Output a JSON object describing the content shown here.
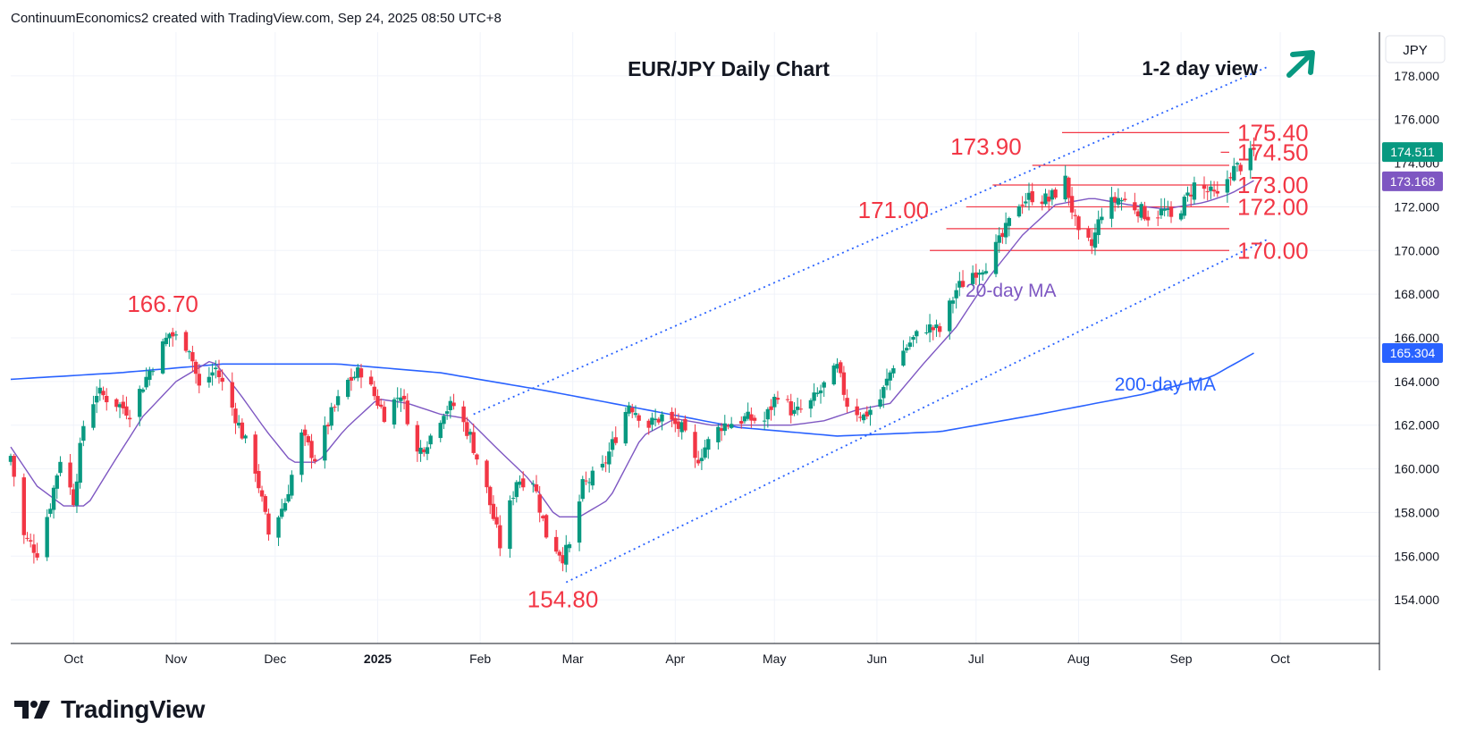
{
  "header": {
    "attribution": "ContinuumEconomics2 created with TradingView.com, Sep 24, 2025 08:50 UTC+8"
  },
  "footer": {
    "brand": "TradingView"
  },
  "colors": {
    "up": "#089981",
    "down": "#f23645",
    "level": "#f23645",
    "trend": "#2962ff",
    "ma20": "#7e57c2",
    "ma200": "#2962ff",
    "arrow": "#089981",
    "text": "#131722",
    "grid": "#f0f3fa",
    "price_badge": "#089981",
    "ma20_badge": "#7e57c2",
    "ma200_badge": "#2962ff"
  },
  "chart_data": {
    "type": "candlestick",
    "title": "EUR/JPY Daily Chart",
    "view_label": "1-2 day view",
    "view_direction": "up",
    "currency": "JPY",
    "y_axis": {
      "range": [
        152.0,
        180.0
      ],
      "ticks": [
        "154.000",
        "156.000",
        "158.000",
        "160.000",
        "162.000",
        "164.000",
        "166.000",
        "168.000",
        "170.000",
        "172.000",
        "174.000",
        "176.000",
        "178.000"
      ]
    },
    "x_axis": {
      "start": "2024-09-12",
      "end": "2025-10-31",
      "ticks": [
        {
          "label": "Oct",
          "date": "2024-10-01",
          "bold": false
        },
        {
          "label": "Nov",
          "date": "2024-11-01",
          "bold": false
        },
        {
          "label": "Dec",
          "date": "2024-12-01",
          "bold": false
        },
        {
          "label": "2025",
          "date": "2025-01-01",
          "bold": true
        },
        {
          "label": "Feb",
          "date": "2025-02-01",
          "bold": false
        },
        {
          "label": "Mar",
          "date": "2025-03-01",
          "bold": false
        },
        {
          "label": "Apr",
          "date": "2025-04-01",
          "bold": false
        },
        {
          "label": "May",
          "date": "2025-05-01",
          "bold": false
        },
        {
          "label": "Jun",
          "date": "2025-06-01",
          "bold": false
        },
        {
          "label": "Jul",
          "date": "2025-07-01",
          "bold": false
        },
        {
          "label": "Aug",
          "date": "2025-08-01",
          "bold": false
        },
        {
          "label": "Sep",
          "date": "2025-09-01",
          "bold": false
        },
        {
          "label": "Oct",
          "date": "2025-10-01",
          "bold": false
        }
      ]
    },
    "price_anchors": [
      [
        "2024-09-12",
        160.6
      ],
      [
        "2024-09-16",
        156.9
      ],
      [
        "2024-09-20",
        156.2
      ],
      [
        "2024-09-24",
        158.4
      ],
      [
        "2024-09-27",
        160.5
      ],
      [
        "2024-10-01",
        158.6
      ],
      [
        "2024-10-04",
        162.0
      ],
      [
        "2024-10-08",
        163.5
      ],
      [
        "2024-10-14",
        163.0
      ],
      [
        "2024-10-18",
        162.6
      ],
      [
        "2024-10-24",
        164.5
      ],
      [
        "2024-10-30",
        166.2
      ],
      [
        "2024-11-05",
        165.6
      ],
      [
        "2024-11-08",
        163.7
      ],
      [
        "2024-11-13",
        164.6
      ],
      [
        "2024-11-18",
        162.8
      ],
      [
        "2024-11-25",
        160.0
      ],
      [
        "2024-11-29",
        157.0
      ],
      [
        "2024-12-04",
        158.5
      ],
      [
        "2024-12-09",
        161.5
      ],
      [
        "2024-12-13",
        160.5
      ],
      [
        "2024-12-18",
        162.5
      ],
      [
        "2024-12-23",
        164.0
      ],
      [
        "2024-12-27",
        164.5
      ],
      [
        "2025-01-03",
        162.5
      ],
      [
        "2025-01-08",
        163.5
      ],
      [
        "2025-01-13",
        160.7
      ],
      [
        "2025-01-17",
        161.5
      ],
      [
        "2025-01-21",
        162.7
      ],
      [
        "2025-01-24",
        162.9
      ],
      [
        "2025-01-29",
        161.5
      ],
      [
        "2025-02-03",
        159.0
      ],
      [
        "2025-02-07",
        156.5
      ],
      [
        "2025-02-12",
        159.5
      ],
      [
        "2025-02-17",
        159.5
      ],
      [
        "2025-02-21",
        157.0
      ],
      [
        "2025-02-26",
        156.0
      ],
      [
        "2025-02-28",
        156.4
      ],
      [
        "2025-03-04",
        159.2
      ],
      [
        "2025-03-10",
        160.0
      ],
      [
        "2025-03-14",
        161.5
      ],
      [
        "2025-03-18",
        163.0
      ],
      [
        "2025-03-24",
        162.0
      ],
      [
        "2025-03-28",
        162.4
      ],
      [
        "2025-04-03",
        161.8
      ],
      [
        "2025-04-07",
        160.3
      ],
      [
        "2025-04-10",
        161.0
      ],
      [
        "2025-04-15",
        162.0
      ],
      [
        "2025-04-22",
        162.3
      ],
      [
        "2025-04-28",
        162.2
      ],
      [
        "2025-05-02",
        163.5
      ],
      [
        "2025-05-07",
        162.5
      ],
      [
        "2025-05-12",
        163.0
      ],
      [
        "2025-05-16",
        163.8
      ],
      [
        "2025-05-20",
        164.6
      ],
      [
        "2025-05-23",
        163.0
      ],
      [
        "2025-05-28",
        162.4
      ],
      [
        "2025-06-02",
        163.2
      ],
      [
        "2025-06-06",
        164.8
      ],
      [
        "2025-06-11",
        165.8
      ],
      [
        "2025-06-16",
        166.5
      ],
      [
        "2025-06-20",
        166.3
      ],
      [
        "2025-06-25",
        168.2
      ],
      [
        "2025-06-30",
        169.0
      ],
      [
        "2025-07-04",
        169.4
      ],
      [
        "2025-07-09",
        170.6
      ],
      [
        "2025-07-14",
        172.2
      ],
      [
        "2025-07-18",
        172.5
      ],
      [
        "2025-07-23",
        172.3
      ],
      [
        "2025-07-28",
        173.2
      ],
      [
        "2025-08-01",
        170.6
      ],
      [
        "2025-08-05",
        170.2
      ],
      [
        "2025-08-08",
        171.8
      ],
      [
        "2025-08-13",
        172.4
      ],
      [
        "2025-08-18",
        172.0
      ],
      [
        "2025-08-22",
        171.6
      ],
      [
        "2025-08-27",
        171.8
      ],
      [
        "2025-08-29",
        171.4
      ],
      [
        "2025-09-02",
        172.2
      ],
      [
        "2025-09-05",
        173.0
      ],
      [
        "2025-09-09",
        172.7
      ],
      [
        "2025-09-12",
        172.4
      ],
      [
        "2025-09-16",
        173.6
      ],
      [
        "2025-09-19",
        173.9
      ],
      [
        "2025-09-23",
        174.5
      ]
    ],
    "ma20_anchors": [
      [
        "2024-09-12",
        161.0
      ],
      [
        "2024-09-20",
        159.2
      ],
      [
        "2024-09-28",
        158.3
      ],
      [
        "2024-10-05",
        158.3
      ],
      [
        "2024-10-14",
        160.5
      ],
      [
        "2024-10-22",
        162.4
      ],
      [
        "2024-11-01",
        164.0
      ],
      [
        "2024-11-12",
        165.0
      ],
      [
        "2024-11-20",
        163.5
      ],
      [
        "2024-11-28",
        161.8
      ],
      [
        "2024-12-06",
        160.3
      ],
      [
        "2024-12-14",
        160.3
      ],
      [
        "2024-12-22",
        161.8
      ],
      [
        "2025-01-01",
        163.2
      ],
      [
        "2025-01-10",
        163.0
      ],
      [
        "2025-01-20",
        162.5
      ],
      [
        "2025-01-28",
        162.3
      ],
      [
        "2025-02-07",
        160.8
      ],
      [
        "2025-02-16",
        159.5
      ],
      [
        "2025-02-24",
        157.8
      ],
      [
        "2025-03-03",
        157.8
      ],
      [
        "2025-03-12",
        158.6
      ],
      [
        "2025-03-22",
        161.5
      ],
      [
        "2025-04-01",
        162.3
      ],
      [
        "2025-04-12",
        162.0
      ],
      [
        "2025-04-24",
        162.0
      ],
      [
        "2025-05-06",
        162.0
      ],
      [
        "2025-05-16",
        162.2
      ],
      [
        "2025-05-26",
        162.7
      ],
      [
        "2025-06-05",
        163.0
      ],
      [
        "2025-06-15",
        164.8
      ],
      [
        "2025-06-25",
        166.5
      ],
      [
        "2025-07-05",
        168.8
      ],
      [
        "2025-07-15",
        170.7
      ],
      [
        "2025-07-25",
        172.1
      ],
      [
        "2025-08-05",
        172.4
      ],
      [
        "2025-08-16",
        172.1
      ],
      [
        "2025-08-27",
        171.9
      ],
      [
        "2025-09-08",
        172.2
      ],
      [
        "2025-09-16",
        172.6
      ],
      [
        "2025-09-23",
        173.2
      ]
    ],
    "ma200_anchors": [
      [
        "2024-09-12",
        164.1
      ],
      [
        "2024-10-15",
        164.4
      ],
      [
        "2024-11-15",
        164.8
      ],
      [
        "2024-12-20",
        164.8
      ],
      [
        "2025-01-20",
        164.4
      ],
      [
        "2025-02-20",
        163.6
      ],
      [
        "2025-03-20",
        162.8
      ],
      [
        "2025-04-20",
        161.9
      ],
      [
        "2025-05-20",
        161.5
      ],
      [
        "2025-06-20",
        161.7
      ],
      [
        "2025-07-20",
        162.5
      ],
      [
        "2025-08-20",
        163.4
      ],
      [
        "2025-09-10",
        164.2
      ],
      [
        "2025-09-23",
        165.3
      ]
    ],
    "levels": [
      {
        "value": 175.4,
        "label": "175.40",
        "from": "2025-07-27"
      },
      {
        "value": 174.5,
        "label": "174.50",
        "from": "2025-09-13"
      },
      {
        "value": 173.9,
        "label": "",
        "from": "2025-07-18"
      },
      {
        "value": 173.0,
        "label": "173.00",
        "from": "2025-07-06"
      },
      {
        "value": 172.0,
        "label": "172.00",
        "from": "2025-06-28"
      },
      {
        "value": 171.0,
        "label": "",
        "from": "2025-06-22"
      },
      {
        "value": 170.0,
        "label": "170.00",
        "from": "2025-06-17"
      }
    ],
    "annotations": [
      {
        "text": "173.90",
        "date": "2025-07-04",
        "value": 173.9
      },
      {
        "text": "171.00",
        "date": "2025-06-06",
        "value": 171.0
      },
      {
        "text": "166.70",
        "date": "2024-10-28",
        "value": 166.7
      },
      {
        "text": "154.80",
        "date": "2025-02-26",
        "value": 154.8
      }
    ],
    "channel": {
      "lower": [
        [
          "2025-02-27",
          154.8
        ],
        [
          "2025-09-27",
          170.5
        ]
      ],
      "upper": [
        [
          "2025-01-30",
          162.5
        ],
        [
          "2025-09-27",
          178.4
        ]
      ]
    },
    "ma_labels": {
      "ma20": "20-day MA",
      "ma200": "200-day MA"
    },
    "badges": {
      "last_price": "174.511",
      "ma20": "173.168",
      "ma200": "165.304"
    }
  }
}
